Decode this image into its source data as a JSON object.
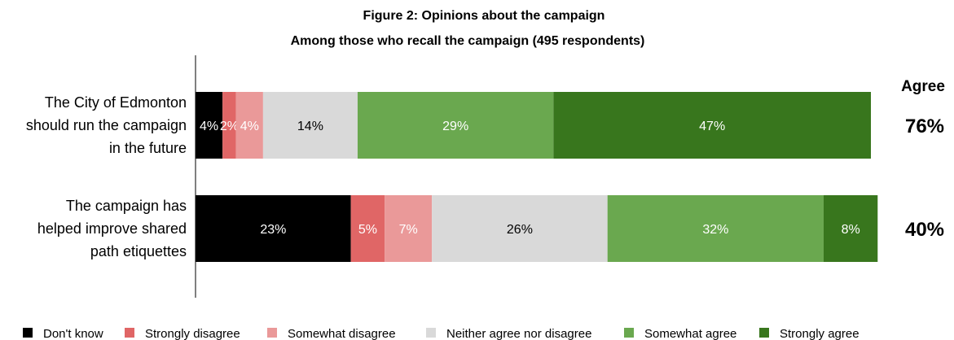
{
  "chart_data": {
    "type": "bar",
    "orientation": "horizontal",
    "stacked": true,
    "title": "Figure 2: Opinions about the campaign",
    "subtitle": "Among those who recall the campaign (495 respondents)",
    "categories": [
      "The City of Edmonton should run the campaign in the future",
      "The campaign has helped improve shared path etiquettes"
    ],
    "category_lines": [
      [
        "The City of Edmonton",
        "should run the campaign",
        "in the future"
      ],
      [
        "The campaign has",
        "helped improve shared",
        "path etiquettes"
      ]
    ],
    "series": [
      {
        "name": "Don't know",
        "color": "#000000",
        "label_color": "#ffffff",
        "values": [
          4,
          23
        ],
        "labels": [
          "4%",
          "23%"
        ]
      },
      {
        "name": "Strongly disagree",
        "color": "#e06666",
        "label_color": "#ffffff",
        "values": [
          2,
          5
        ],
        "labels": [
          "2%",
          "5%"
        ]
      },
      {
        "name": "Somewhat disagree",
        "color": "#ea9999",
        "label_color": "#ffffff",
        "values": [
          4,
          7
        ],
        "labels": [
          "4%",
          "7%"
        ]
      },
      {
        "name": "Neither agree nor disagree",
        "color": "#d9d9d9",
        "label_color": "#000000",
        "values": [
          14,
          26
        ],
        "labels": [
          "14%",
          "26%"
        ]
      },
      {
        "name": "Somewhat agree",
        "color": "#6aa84f",
        "label_color": "#ffffff",
        "values": [
          29,
          32
        ],
        "labels": [
          "29%",
          "32%"
        ]
      },
      {
        "name": "Strongly agree",
        "color": "#38761d",
        "label_color": "#ffffff",
        "values": [
          47,
          8
        ],
        "labels": [
          "47%",
          "8%"
        ]
      }
    ],
    "agree_header": "Agree",
    "agree_values": [
      "76%",
      "40%"
    ],
    "xlim": [
      0,
      100
    ],
    "grid": false,
    "legend_position": "bottom"
  }
}
